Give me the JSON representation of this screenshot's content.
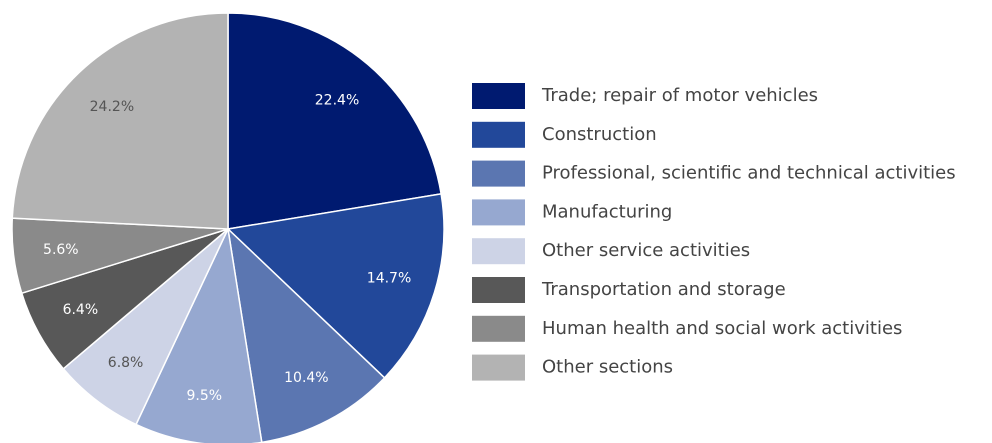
{
  "chart_data": {
    "type": "pie",
    "categories": [
      "Trade; repair of motor vehicles",
      "Construction",
      "Professional, scientific and technical activities",
      "Manufacturing",
      "Other service activities",
      "Transportation and storage",
      "Human health and social work activities",
      "Other sections"
    ],
    "values": [
      22.4,
      14.7,
      10.4,
      9.5,
      6.8,
      6.4,
      5.6,
      24.2
    ],
    "value_labels": [
      "22.4%",
      "14.7%",
      "10.4%",
      "9.5%",
      "6.8%",
      "6.4%",
      "5.6%",
      "24.2%"
    ],
    "colors": [
      "#001a70",
      "#22489a",
      "#5b76b1",
      "#96a8d0",
      "#cdd3e6",
      "#585858",
      "#8a8a8a",
      "#b3b3b3"
    ],
    "legend": "right"
  }
}
